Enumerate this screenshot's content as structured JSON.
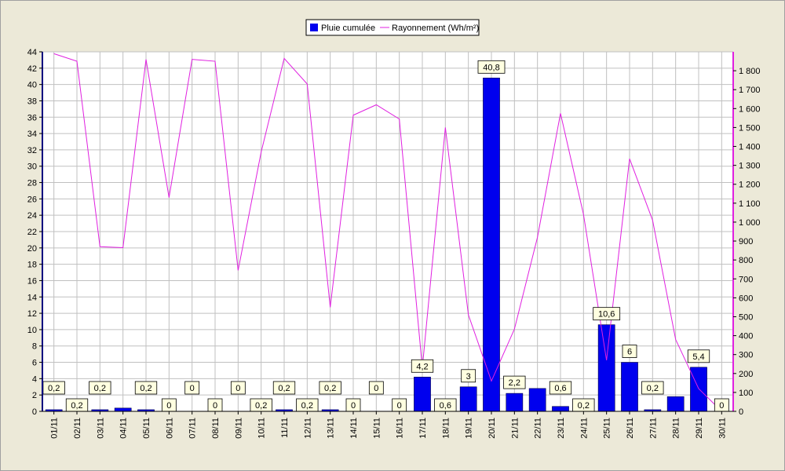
{
  "chart_data": {
    "type": "bar+line",
    "categories": [
      "01/11",
      "02/11",
      "03/11",
      "04/11",
      "05/11",
      "06/11",
      "07/11",
      "08/11",
      "09/11",
      "10/11",
      "11/11",
      "12/11",
      "13/11",
      "14/11",
      "15/11",
      "16/11",
      "17/11",
      "18/11",
      "19/11",
      "20/11",
      "21/11",
      "22/11",
      "23/11",
      "24/11",
      "25/11",
      "26/11",
      "27/11",
      "28/11",
      "29/11",
      "30/11"
    ],
    "series": [
      {
        "name": "Pluie cumulée",
        "kind": "bar",
        "axis": "left",
        "color": "#0000ee",
        "values": [
          0.2,
          0.2,
          0.2,
          0.4,
          0.2,
          0,
          0,
          0,
          0,
          0.2,
          0.2,
          0.2,
          0.2,
          0,
          0,
          0,
          4.2,
          0.6,
          3,
          40.8,
          2.2,
          2.8,
          0.6,
          0.2,
          10.6,
          6,
          0.2,
          1.8,
          5.4,
          0
        ],
        "labels": [
          "0,2",
          "0,2",
          "0,2",
          null,
          "0,2",
          "0",
          "0",
          "0",
          "0",
          "0,2",
          "0,2",
          "0,2",
          "0,2",
          "0",
          "0",
          "0",
          "4,2",
          "0,6",
          "3",
          "40,8",
          "2,2",
          null,
          "0,6",
          "0,2",
          "10,6",
          "6",
          "0,2",
          null,
          "5,4",
          "0"
        ]
      },
      {
        "name": "Rayonnement (Wh/m²)",
        "kind": "line",
        "axis": "right",
        "color": "#e020e0",
        "values": [
          1890,
          1850,
          870,
          865,
          1860,
          1130,
          1860,
          1850,
          745,
          1370,
          1865,
          1730,
          550,
          1565,
          1620,
          1545,
          230,
          1500,
          510,
          160,
          435,
          920,
          1575,
          1040,
          270,
          1335,
          1010,
          380,
          120,
          0
        ]
      }
    ],
    "y_left": {
      "min": 0,
      "max": 44,
      "ticks": [
        "0",
        "2",
        "4",
        "6",
        "8",
        "10",
        "12",
        "14",
        "16",
        "18",
        "20",
        "22",
        "24",
        "26",
        "28",
        "30",
        "32",
        "34",
        "36",
        "38",
        "40",
        "42",
        "44"
      ]
    },
    "y_right": {
      "min": 0,
      "max": 1900,
      "ticks": [
        "0",
        "100",
        "200",
        "300",
        "400",
        "500",
        "600",
        "700",
        "800",
        "900",
        "1 000",
        "1 100",
        "1 200",
        "1 300",
        "1 400",
        "1 500",
        "1 600",
        "1 700",
        "1 800"
      ]
    },
    "grid": true,
    "legend": "top-center"
  }
}
